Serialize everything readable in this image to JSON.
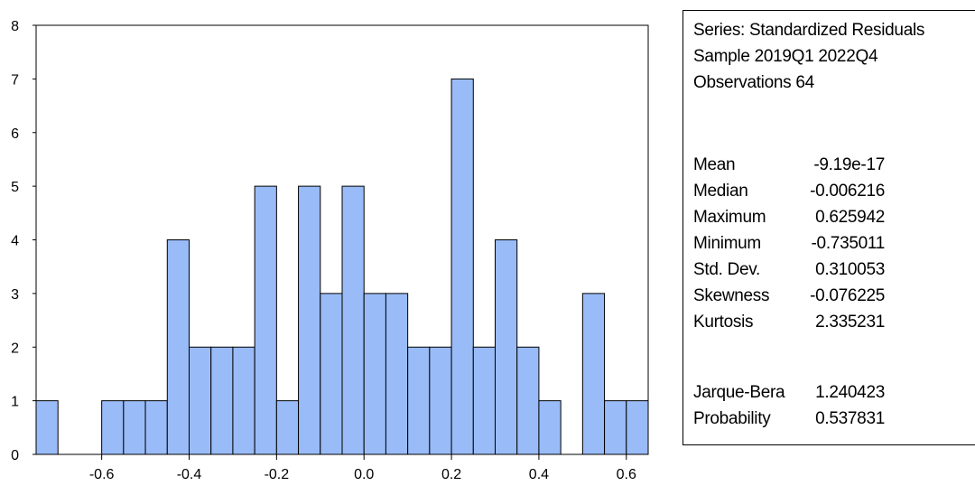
{
  "chart_data": {
    "type": "bar",
    "bin_width": 0.05,
    "bins": [
      {
        "x0": -0.75,
        "count": 1
      },
      {
        "x0": -0.7,
        "count": 0
      },
      {
        "x0": -0.65,
        "count": 0
      },
      {
        "x0": -0.6,
        "count": 1
      },
      {
        "x0": -0.55,
        "count": 1
      },
      {
        "x0": -0.5,
        "count": 1
      },
      {
        "x0": -0.45,
        "count": 4
      },
      {
        "x0": -0.4,
        "count": 2
      },
      {
        "x0": -0.35,
        "count": 2
      },
      {
        "x0": -0.3,
        "count": 2
      },
      {
        "x0": -0.25,
        "count": 5
      },
      {
        "x0": -0.2,
        "count": 1
      },
      {
        "x0": -0.15,
        "count": 5
      },
      {
        "x0": -0.1,
        "count": 3
      },
      {
        "x0": -0.05,
        "count": 5
      },
      {
        "x0": 0.0,
        "count": 3
      },
      {
        "x0": 0.05,
        "count": 3
      },
      {
        "x0": 0.1,
        "count": 2
      },
      {
        "x0": 0.15,
        "count": 2
      },
      {
        "x0": 0.2,
        "count": 7
      },
      {
        "x0": 0.25,
        "count": 2
      },
      {
        "x0": 0.3,
        "count": 4
      },
      {
        "x0": 0.35,
        "count": 2
      },
      {
        "x0": 0.4,
        "count": 1
      },
      {
        "x0": 0.45,
        "count": 0
      },
      {
        "x0": 0.5,
        "count": 3
      },
      {
        "x0": 0.55,
        "count": 1
      },
      {
        "x0": 0.6,
        "count": 1
      }
    ],
    "xlim": [
      -0.75,
      0.65
    ],
    "ylim": [
      0,
      8
    ],
    "x_ticks": [
      "-0.6",
      "-0.4",
      "-0.2",
      "0.0",
      "0.2",
      "0.4",
      "0.6"
    ],
    "x_tick_values": [
      -0.6,
      -0.4,
      -0.2,
      0.0,
      0.2,
      0.4,
      0.6
    ],
    "y_ticks": [
      "0",
      "1",
      "2",
      "3",
      "4",
      "5",
      "6",
      "7",
      "8"
    ],
    "y_tick_values": [
      0,
      1,
      2,
      3,
      4,
      5,
      6,
      7,
      8
    ],
    "title": "",
    "xlabel": "",
    "ylabel": "",
    "grid": false,
    "bar_color": "#99bbf7",
    "bar_edge_color": "#000000"
  },
  "stats": {
    "series": "Series: Standardized Residuals",
    "sample": "Sample 2019Q1 2022Q4",
    "observations": "Observations 64",
    "rows": [
      {
        "label": "Mean",
        "value": "-9.19e-17"
      },
      {
        "label": "Median",
        "value": "-0.006216"
      },
      {
        "label": "Maximum",
        "value": "0.625942"
      },
      {
        "label": "Minimum",
        "value": "-0.735011"
      },
      {
        "label": "Std. Dev.",
        "value": "0.310053"
      },
      {
        "label": "Skewness",
        "value": "-0.076225"
      },
      {
        "label": "Kurtosis",
        "value": "2.335231"
      },
      {
        "label": "Jarque-Bera",
        "value": "1.240423"
      },
      {
        "label": "Probability",
        "value": "0.537831"
      }
    ]
  }
}
